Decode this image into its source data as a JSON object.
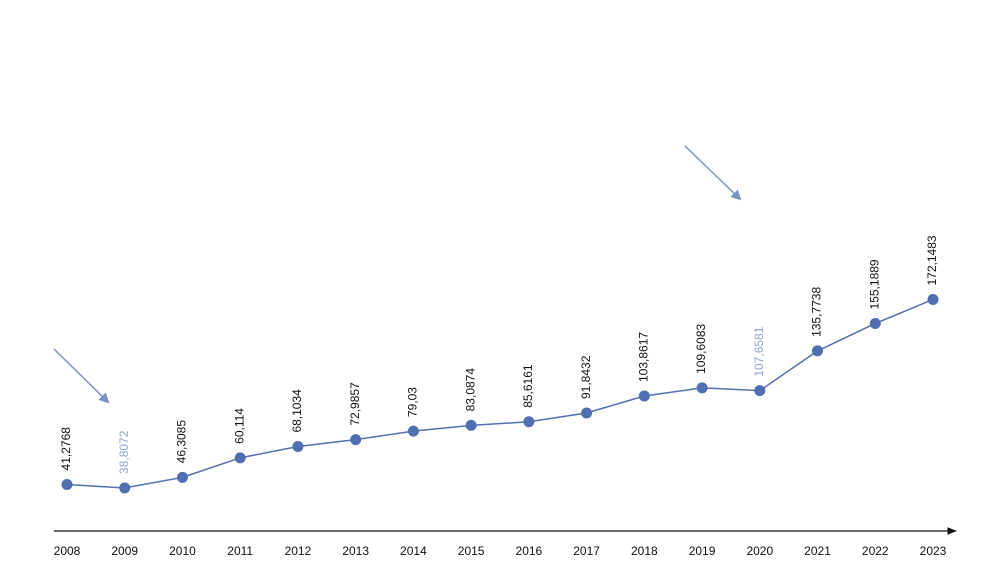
{
  "chart_data": {
    "type": "line",
    "title": "",
    "xlabel": "",
    "ylabel": "",
    "categories": [
      "2008",
      "2009",
      "2010",
      "2011",
      "2012",
      "2013",
      "2014",
      "2015",
      "2016",
      "2017",
      "2018",
      "2019",
      "2020",
      "2021",
      "2022",
      "2023"
    ],
    "series": [
      {
        "values": [
          41.2768,
          38.8072,
          46.3085,
          60.114,
          68.1034,
          72.9857,
          79.03,
          83.0874,
          85.6161,
          91.8432,
          103.8617,
          109.6083,
          107.6581,
          135.7738,
          155.1889,
          172.1483
        ]
      }
    ],
    "data_labels": [
      "41,2768",
      "38,8072",
      "46,3085",
      "60,114",
      "68,1034",
      "72,9857",
      "79,03",
      "83,0874",
      "85,6161",
      "91,8432",
      "103,8617",
      "109,6083",
      "107,6581",
      "135,7738",
      "155,1889",
      "172,1483"
    ],
    "highlighted_points": [
      "2009",
      "2020"
    ],
    "colors": {
      "line": "#5470ad",
      "marker": "#4f6fb0",
      "label": "#111111",
      "highlight_label": "#8da4cc",
      "arrow": "#7a94c2",
      "axis": "#111111"
    },
    "y_axis_visible": false,
    "grid": false,
    "legend": "none"
  }
}
